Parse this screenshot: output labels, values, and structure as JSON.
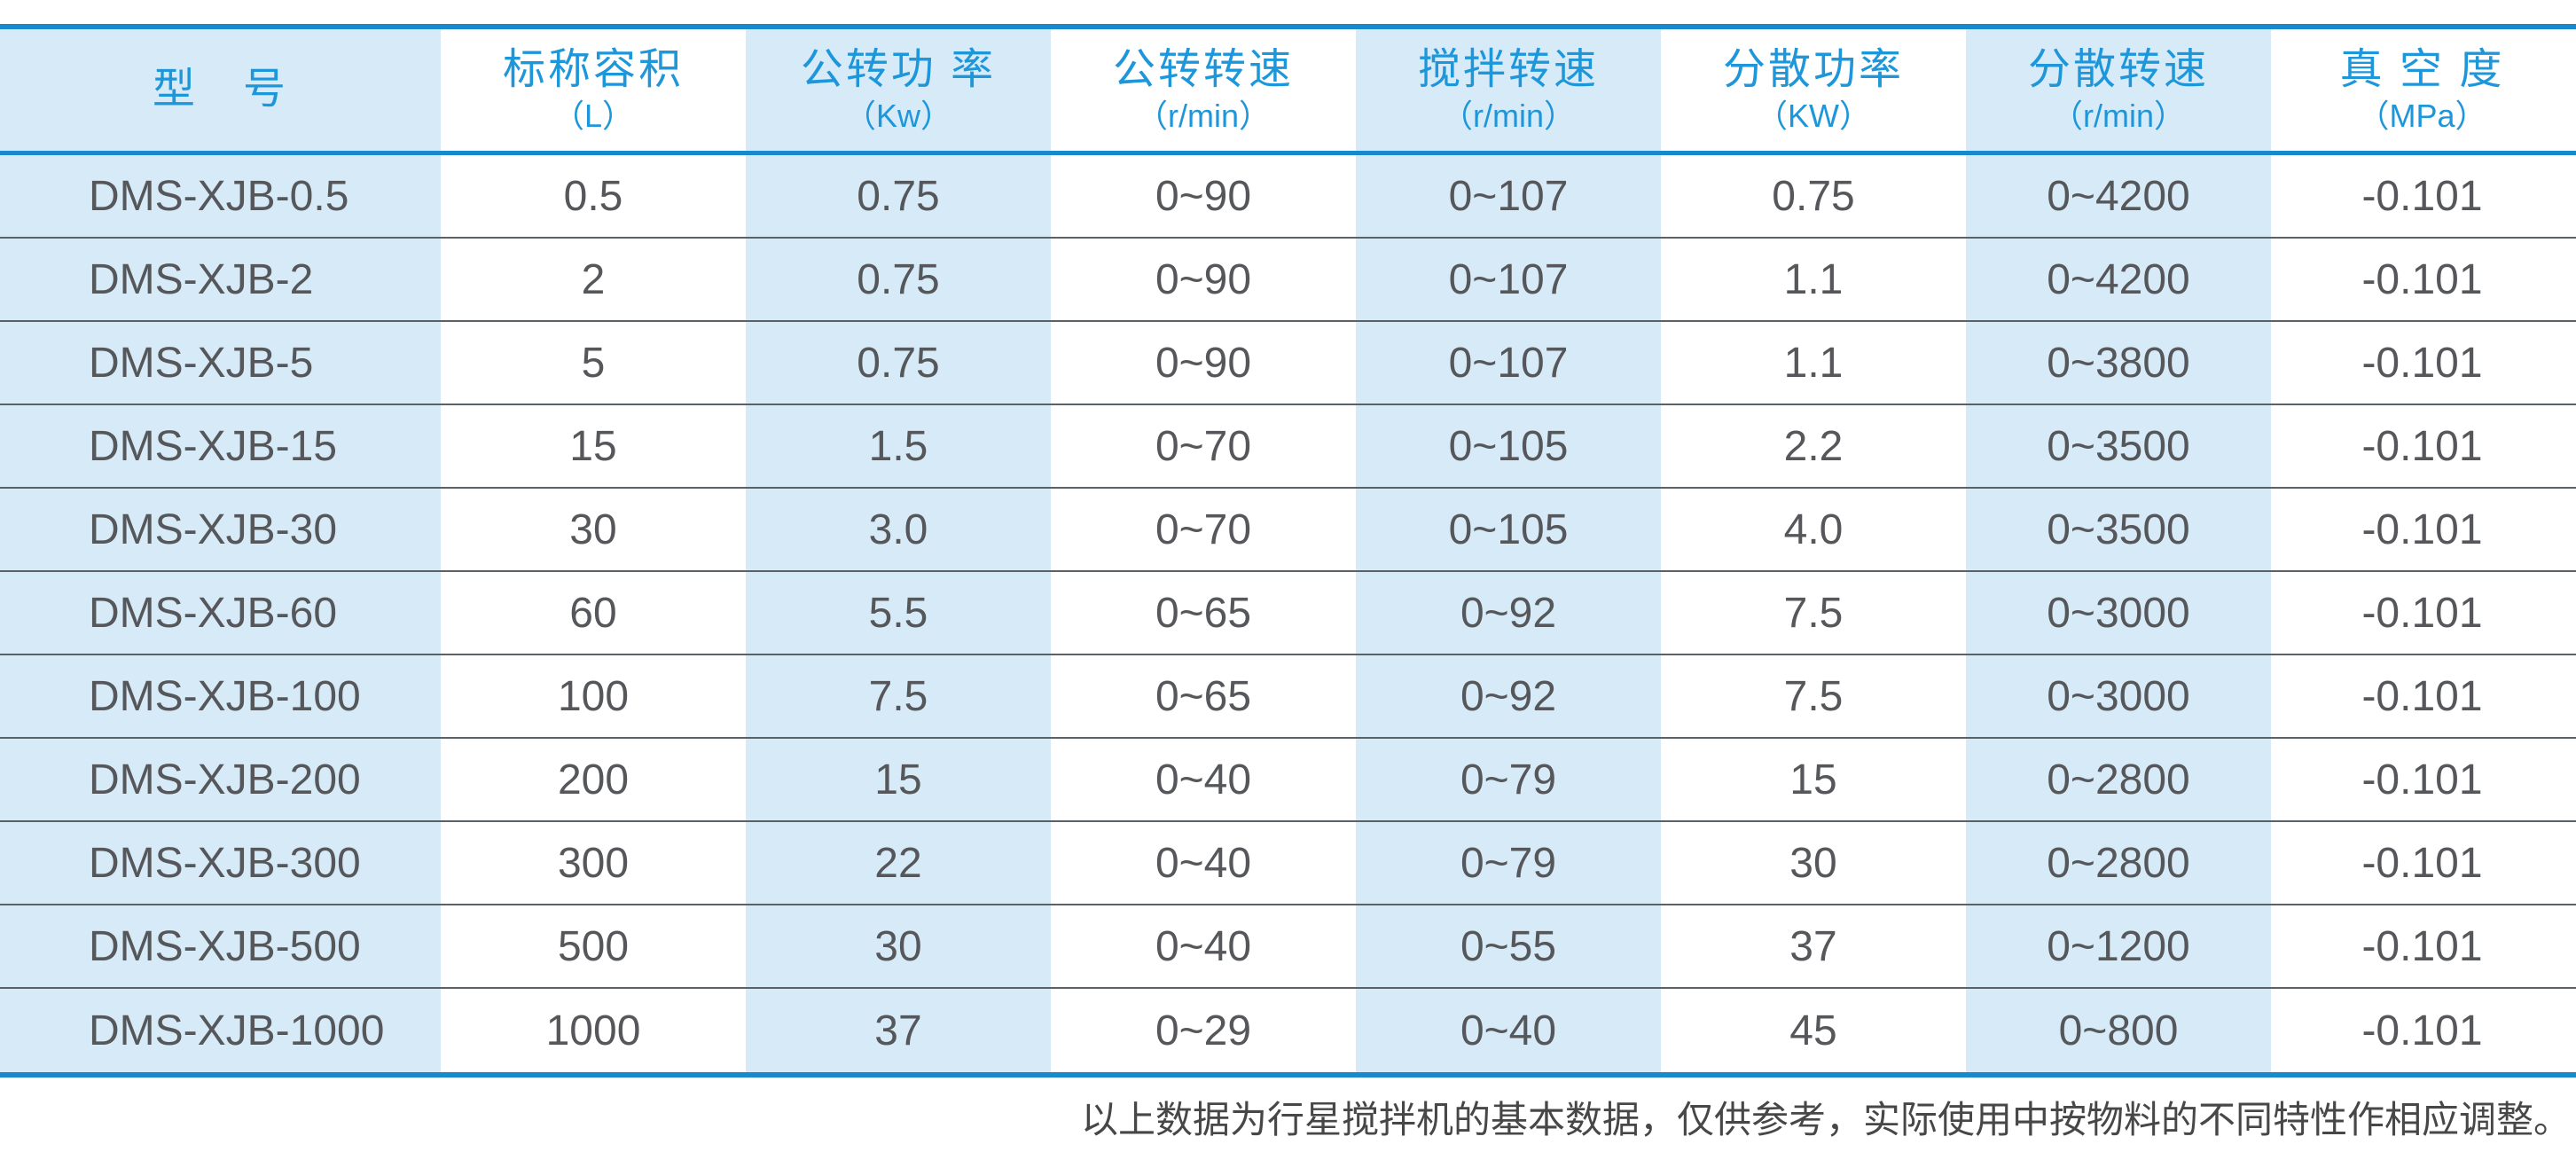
{
  "colors": {
    "accent": "#1888cf",
    "header-text": "#1d96da",
    "band": "#d7eaf8",
    "data-text": "#55575a",
    "separator": "#5a6268",
    "footer-text": "#474747"
  },
  "table": {
    "columns": [
      {
        "key": "model",
        "name": "型　号",
        "unit": ""
      },
      {
        "key": "capacity",
        "name": "标称容积",
        "unit": "（L）"
      },
      {
        "key": "revolution-power",
        "name": "公转功 率",
        "unit": "（Kw）"
      },
      {
        "key": "revolution-speed",
        "name": "公转转速",
        "unit": "（r/min）"
      },
      {
        "key": "stirring-speed",
        "name": "搅拌转速",
        "unit": "（r/min）"
      },
      {
        "key": "dispersion-power",
        "name": "分散功率",
        "unit": "（KW）"
      },
      {
        "key": "dispersion-speed",
        "name": "分散转速",
        "unit": "（r/min）"
      },
      {
        "key": "vacuum-degree",
        "name": "真 空 度",
        "unit": "（MPa）"
      }
    ],
    "rows": [
      [
        "DMS-XJB-0.5",
        "0.5",
        "0.75",
        "0~90",
        "0~107",
        "0.75",
        "0~4200",
        "-0.101"
      ],
      [
        "DMS-XJB-2",
        "2",
        "0.75",
        "0~90",
        "0~107",
        "1.1",
        "0~4200",
        "-0.101"
      ],
      [
        "DMS-XJB-5",
        "5",
        "0.75",
        "0~90",
        "0~107",
        "1.1",
        "0~3800",
        "-0.101"
      ],
      [
        "DMS-XJB-15",
        "15",
        "1.5",
        "0~70",
        "0~105",
        "2.2",
        "0~3500",
        "-0.101"
      ],
      [
        "DMS-XJB-30",
        "30",
        "3.0",
        "0~70",
        "0~105",
        "4.0",
        "0~3500",
        "-0.101"
      ],
      [
        "DMS-XJB-60",
        "60",
        "5.5",
        "0~65",
        "0~92",
        "7.5",
        "0~3000",
        "-0.101"
      ],
      [
        "DMS-XJB-100",
        "100",
        "7.5",
        "0~65",
        "0~92",
        "7.5",
        "0~3000",
        "-0.101"
      ],
      [
        "DMS-XJB-200",
        "200",
        "15",
        "0~40",
        "0~79",
        "15",
        "0~2800",
        "-0.101"
      ],
      [
        "DMS-XJB-300",
        "300",
        "22",
        "0~40",
        "0~79",
        "30",
        "0~2800",
        "-0.101"
      ],
      [
        "DMS-XJB-500",
        "500",
        "30",
        "0~40",
        "0~55",
        "37",
        "0~1200",
        "-0.101"
      ],
      [
        "DMS-XJB-1000",
        "1000",
        "37",
        "0~29",
        "0~40",
        "45",
        "0~800",
        "-0.101"
      ]
    ]
  },
  "footer": {
    "note": "以上数据为行星搅拌机的基本数据，仅供参考，实际使用中按物料的不同特性作相应调整。"
  }
}
